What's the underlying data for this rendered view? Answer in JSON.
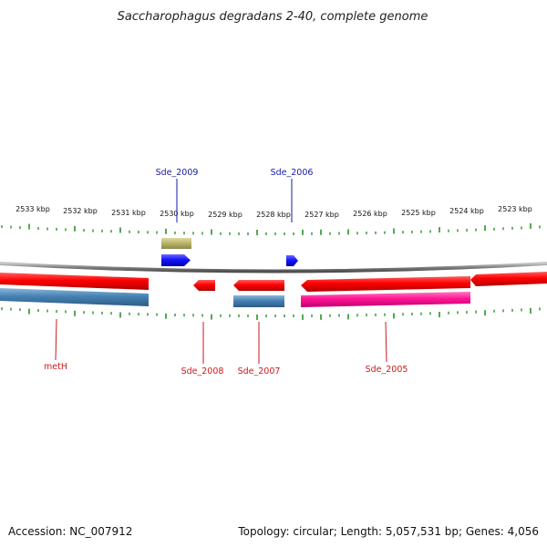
{
  "title": "Saccharophagus degradans 2-40, complete genome",
  "footer": {
    "accession": "Accession: NC_007912",
    "summary": "Topology: circular; Length: 5,057,531 bp; Genes: 4,056"
  },
  "scale_labels": [
    "2533 kbp",
    "2532 kbp",
    "2531 kbp",
    "2530 kbp",
    "2529 kbp",
    "2528 kbp",
    "2527 kbp",
    "2526 kbp",
    "2525 kbp",
    "2524 kbp",
    "2523 kbp"
  ],
  "gene_labels": {
    "sde_2009": "Sde_2009",
    "sde_2006": "Sde_2006",
    "meth": "metH",
    "sde_2008": "Sde_2008",
    "sde_2007": "Sde_2007",
    "sde_2005": "Sde_2005"
  },
  "colors": {
    "cds_forward": "#1414ff",
    "cds_reverse": "#ff0000",
    "cds_pink": "#ff1493",
    "rna_blue": "#4682b4",
    "misc_feature": "#bdb76b",
    "backbone": "#808080",
    "ticks": "#1a8a1a",
    "label_blue": "#1a1aa6",
    "label_red": "#cc1a1a"
  }
}
